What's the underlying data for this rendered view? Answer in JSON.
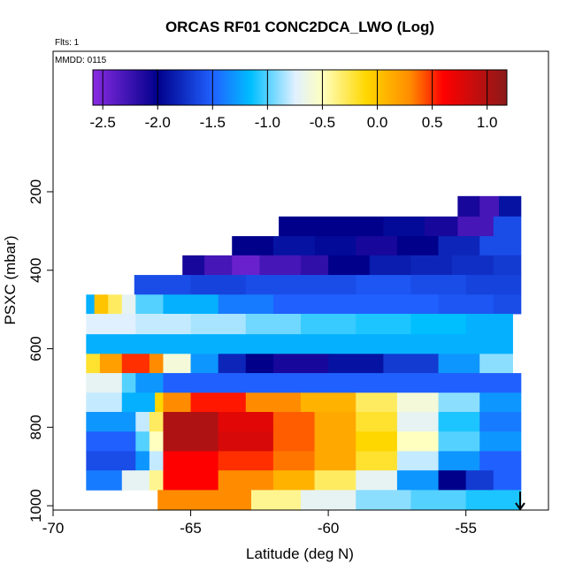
{
  "chart_data": {
    "type": "heatmap",
    "title": "ORCAS RF01 CONC2DCA_LWO (Log)",
    "flights_label": "Flts: 1",
    "date_label": "MMDD: 0115",
    "x_label": "Latitude (deg N)",
    "y_label": "PSXC (mbar)",
    "xlim": [
      -70,
      -52
    ],
    "xticks": [
      -70,
      -65,
      -60,
      -55
    ],
    "ylim": [
      1011,
      -158
    ],
    "yticks": [
      200,
      400,
      600,
      800,
      1000
    ],
    "colorbar": {
      "lim": [
        -2.59,
        1.18
      ],
      "ticks": [
        -2.5,
        {
          "value": -2,
          "label": "-2.0"
        },
        -1.5,
        {
          "value": -1,
          "label": "-1.0"
        },
        -0.5,
        {
          "value": 0,
          "label": "0.0"
        },
        0.5,
        {
          "value": 1,
          "label": "1.0"
        }
      ],
      "stops": [
        -2.59,
        -2.0,
        -1.5,
        -1.15,
        -0.75,
        -0.5,
        -0.1,
        0.3,
        0.6,
        1.18
      ],
      "colors": [
        "#8a2be2",
        "#00008b",
        "#2060ff",
        "#00bfff",
        "#e0f0ff",
        "#ffffc0",
        "#ffd700",
        "#ff8c00",
        "#ff0000",
        "#8b1a1a"
      ]
    },
    "rows": [
      {
        "p": [
          211,
          263
        ],
        "lat_bins": [
          -55.3,
          -54.5,
          -53.8,
          -53.0
        ],
        "values": [
          -2.1,
          -2.3,
          -1.9
        ]
      },
      {
        "p": [
          263,
          313
        ],
        "lat_bins": [
          -61.8,
          -60,
          -58,
          -56.5,
          -55.3,
          -54,
          -53.0
        ],
        "values": [
          -2.0,
          -2.0,
          -1.95,
          -2.1,
          -2.3,
          -1.6
        ]
      },
      {
        "p": [
          313,
          362
        ],
        "lat_bins": [
          -63.5,
          -62,
          -60.5,
          -59,
          -57.5,
          -56,
          -54.5,
          -53.0
        ],
        "values": [
          -2.0,
          -1.9,
          -1.95,
          -2.1,
          -2.0,
          -1.8,
          -1.6
        ]
      },
      {
        "p": [
          362,
          412
        ],
        "lat_bins": [
          -65.3,
          -64.5,
          -63.5,
          -62.5,
          -61,
          -60,
          -58.5,
          -57,
          -55.5,
          -54,
          -53.0
        ],
        "values": [
          -2.1,
          -2.3,
          -2.45,
          -2.3,
          -2.2,
          -2.0,
          -1.85,
          -1.8,
          -1.75,
          -1.7
        ]
      },
      {
        "p": [
          412,
          462
        ],
        "lat_bins": [
          -67.05,
          -65,
          -63,
          -61,
          -59,
          -57,
          -55,
          -53.0
        ],
        "values": [
          -1.6,
          -1.65,
          -1.6,
          -1.6,
          -1.55,
          -1.6,
          -1.65
        ]
      },
      {
        "p": [
          462,
          511
        ],
        "lat_bins": [
          -68.8,
          -68.5,
          -68,
          -67.5,
          -67,
          -66,
          -64,
          -62,
          -60,
          -58,
          -56,
          -54,
          -53.0
        ],
        "values": [
          -1.2,
          0.0,
          -0.3,
          -0.7,
          -1.0,
          -1.2,
          -1.4,
          -1.5,
          -1.5,
          -1.5,
          -1.55,
          -1.6
        ]
      },
      {
        "p": [
          511,
          563
        ],
        "lat_bins": [
          -68.8,
          -67,
          -65,
          -63,
          -61,
          -59,
          -57,
          -55,
          -53.3
        ],
        "values": [
          -0.75,
          -0.8,
          -0.85,
          -0.95,
          -1.05,
          -1.1,
          -1.15,
          -1.2
        ]
      },
      {
        "p": [
          563,
          613
        ],
        "lat_bins": [
          -68.8,
          -53.3
        ],
        "values": [
          -1.2
        ]
      },
      {
        "p": [
          613,
          662
        ],
        "lat_bins": [
          -68.8,
          -68.3,
          -67.5,
          -66.5,
          -66,
          -65,
          -64,
          -63,
          -62,
          -60,
          -58,
          -56,
          -54.5,
          -53.3
        ],
        "values": [
          -0.2,
          0.2,
          0.5,
          0.3,
          -0.6,
          -1.3,
          -1.8,
          -2.0,
          -2.1,
          -1.9,
          -1.7,
          -1.3,
          -0.9
        ]
      },
      {
        "p": [
          662,
          712
        ],
        "lat_bins": [
          -68.8,
          -67.5,
          -67,
          -66,
          -53.0
        ],
        "values": [
          -0.7,
          -1.0,
          -1.3,
          -1.5
        ]
      },
      {
        "p": [
          712,
          761
        ],
        "lat_bins": [
          -68.8,
          -67.5,
          -66.3,
          -66,
          -65,
          -63,
          -61,
          -59,
          -57.5,
          -56,
          -54.5,
          -53.0
        ],
        "values": [
          -0.8,
          -1.2,
          -0.1,
          0.3,
          0.55,
          0.3,
          0.1,
          -0.3,
          -0.6,
          -0.9,
          -1.3
        ]
      },
      {
        "p": [
          761,
          811
        ],
        "lat_bins": [
          -68.8,
          -67,
          -66.5,
          -66,
          -64,
          -62,
          -60.5,
          -59,
          -57.5,
          -56,
          -54.5,
          -53.0
        ],
        "values": [
          -1.3,
          -0.8,
          -0.3,
          1.0,
          0.75,
          0.4,
          0.15,
          -0.2,
          -0.7,
          -1.1,
          -1.4
        ]
      },
      {
        "p": [
          811,
          861
        ],
        "lat_bins": [
          -68.8,
          -67,
          -66.5,
          -66,
          -64,
          -62,
          -60.5,
          -59,
          -57.5,
          -56,
          -54.5,
          -53.0
        ],
        "values": [
          -1.5,
          -1.0,
          -0.5,
          1.0,
          0.8,
          0.4,
          0.15,
          -0.1,
          -0.5,
          -1.0,
          -1.3
        ]
      },
      {
        "p": [
          861,
          910
        ],
        "lat_bins": [
          -68.8,
          -67,
          -66.5,
          -66,
          -64,
          -62,
          -60.5,
          -59,
          -57.5,
          -56,
          -54.5,
          -53.0
        ],
        "values": [
          -1.6,
          -1.3,
          -0.8,
          0.6,
          0.5,
          0.35,
          0.15,
          -0.2,
          -0.8,
          -1.3,
          -1.5
        ]
      },
      {
        "p": [
          910,
          960
        ],
        "lat_bins": [
          -68.8,
          -67.5,
          -66.5,
          -66,
          -64,
          -62,
          -60.5,
          -59,
          -57.5,
          -56,
          -55,
          -54,
          -53.0
        ],
        "values": [
          -1.4,
          -0.7,
          -0.4,
          0.6,
          0.3,
          0.1,
          -0.3,
          -0.7,
          -1.3,
          -2.0,
          -1.7,
          -1.5
        ]
      },
      {
        "p": [
          960,
          1010
        ],
        "lat_bins": [
          -66.2,
          -62.8,
          -61,
          -59,
          -57,
          -55,
          -53.0
        ],
        "values": [
          0.3,
          -0.4,
          -0.7,
          -0.9,
          -1.0,
          -1.1
        ]
      }
    ]
  }
}
